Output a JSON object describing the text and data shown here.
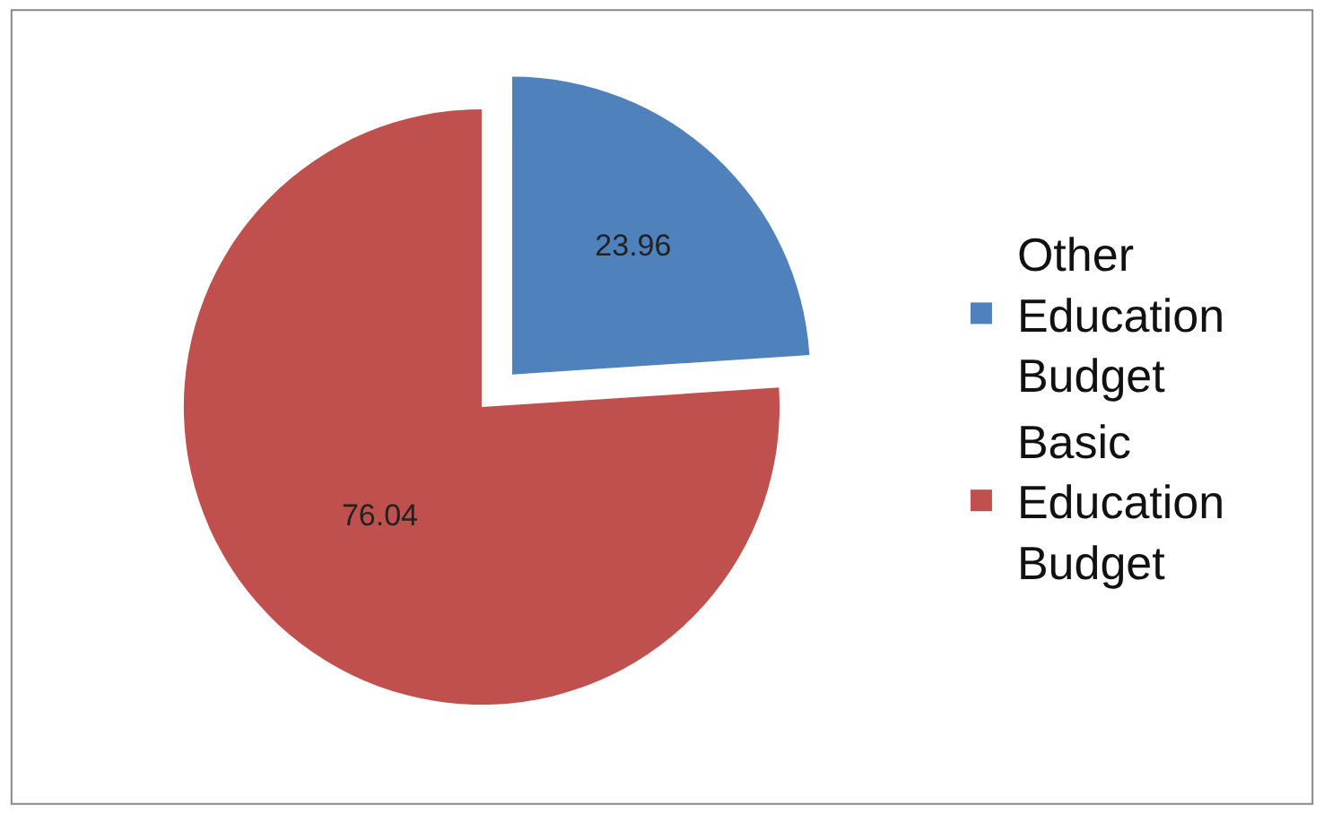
{
  "chart_data": {
    "type": "pie",
    "categories": [
      "Other Education Budget",
      "Basic Education Budget"
    ],
    "values": [
      23.96,
      76.04
    ],
    "colors": [
      "#4f81bd",
      "#c0504d"
    ],
    "data_labels": true,
    "legend": "right"
  }
}
